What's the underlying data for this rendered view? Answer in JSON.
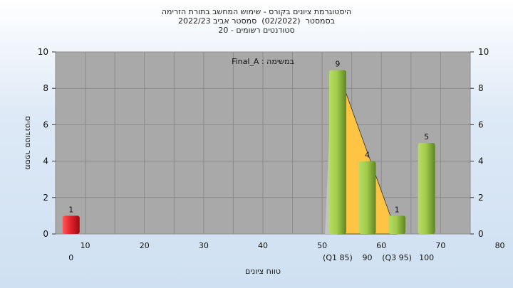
{
  "header": {
    "line1": "היסטוגרמת ציונים בקורס - שימוש המחשב בתורת הזרימה",
    "line2": "בסמסטר  (02/2022)  סמסטר אביב 2022/23",
    "line3": "סטודנטים רשומים - 20"
  },
  "chart_data": {
    "type": "bar",
    "title": "היסטוגרמת ציונים בקורס - שימוש המחשב בתורת הזרימה",
    "annotation": "Final_A : במשימה",
    "xlabel": "טווח ציונים",
    "ylabel": "מספר סטודנטים",
    "ylim": [
      0,
      10
    ],
    "yticks": [
      0,
      2,
      4,
      6,
      8,
      10
    ],
    "x_ticks_upper": [
      "10",
      "20",
      "30",
      "40",
      "50",
      "60",
      "70",
      "80"
    ],
    "x_ticks_lower": [
      "0",
      "(Q1 85)",
      "90",
      "(Q3 95)",
      "100"
    ],
    "bars": [
      {
        "category": "0",
        "value": 1,
        "color": "#e0202a"
      },
      {
        "category": "(Q1 85)",
        "value": 9,
        "color": "#8fbc3a"
      },
      {
        "category": "90",
        "value": 4,
        "color": "#8fbc3a"
      },
      {
        "category": "(Q3 95)",
        "value": 1,
        "color": "#8fbc3a"
      },
      {
        "category": "100",
        "value": 5,
        "color": "#8fbc3a"
      }
    ],
    "plot_background": "#a9a9a9",
    "box_fill": "#ffc443",
    "grid": true
  }
}
